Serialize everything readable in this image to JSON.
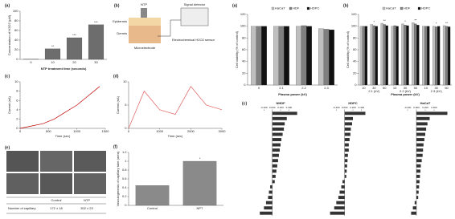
{
  "chart_data": [
    {
      "type": "bar",
      "panel": "(a)",
      "categories": [
        "0",
        "10",
        "20",
        "30"
      ],
      "values": [
        0.5,
        22,
        45,
        72
      ],
      "color": "#6d6d6d",
      "x_label": "NTP treatment time (seconds)",
      "y_label": "Concentration of H2O2 (μM)",
      "ylim": [
        0,
        100
      ],
      "yticks": [
        0,
        20,
        40,
        60,
        80,
        100
      ],
      "annotations": [
        {
          "x": "10",
          "text": "**"
        },
        {
          "x": "20",
          "text": "***"
        },
        {
          "x": "30",
          "text": "***"
        }
      ]
    },
    {
      "type": "line",
      "panel": "(c)",
      "x": [
        0,
        200,
        400,
        600,
        800,
        1000,
        1200,
        1400
      ],
      "series": [
        {
          "color": "#c00000",
          "values": [
            0,
            0.5,
            1,
            2,
            3.5,
            5,
            7,
            9
          ]
        }
      ],
      "x_label": "Time (sec)",
      "y_label": "Current (nA)",
      "xlim": [
        0,
        1500
      ],
      "xticks": [
        0,
        500,
        1000,
        1500
      ],
      "ylim": [
        0,
        10
      ],
      "yticks": [
        0,
        2,
        4,
        6,
        8,
        10
      ]
    },
    {
      "type": "line",
      "panel": "(d)",
      "x": [
        0,
        500,
        1000,
        1500,
        2000,
        2500,
        3000
      ],
      "series": [
        {
          "color": "#e06060",
          "values": [
            0,
            8,
            4,
            3,
            9,
            5,
            4
          ]
        }
      ],
      "x_label": "Time (sec)",
      "y_label": "Current (nA)",
      "xlim": [
        0,
        3000
      ],
      "xticks": [
        0,
        1000,
        2000,
        3000
      ],
      "ylim": [
        0,
        10
      ],
      "yticks": [
        0,
        5,
        10
      ]
    },
    {
      "type": "bar",
      "panel": "(f)",
      "categories": [
        "Control",
        "NPT"
      ],
      "values": [
        0.45,
        1.0
      ],
      "color": "#8a8a8a",
      "y_label": "Vasculogenesis of capillary tube (area)",
      "ylim": [
        0,
        1.2
      ],
      "yticks": [
        0,
        0.2,
        0.4,
        0.6,
        0.8,
        1,
        1.2
      ],
      "annotations": [
        {
          "x": "NPT",
          "text": "*"
        }
      ]
    },
    {
      "type": "bar",
      "panel": "(a)",
      "categories": [
        "0",
        "2.1",
        "2.2",
        "2.3"
      ],
      "x_label": "Plasma power (kV)",
      "y_label": "Cell viability (% of control)",
      "ylim": [
        0,
        120
      ],
      "yticks": [
        0,
        20,
        40,
        60,
        80,
        100,
        120
      ],
      "series": [
        {
          "name": "HaCaT",
          "color": "#bfbfbf",
          "values": [
            100,
            100,
            100,
            96
          ]
        },
        {
          "name": "HDF",
          "color": "#7f7f7f",
          "values": [
            100,
            100,
            101,
            95
          ]
        },
        {
          "name": "HDPC",
          "color": "#111111",
          "values": [
            100,
            100,
            100,
            94
          ]
        }
      ]
    },
    {
      "type": "bar",
      "panel": "(b)",
      "categories": [
        "10",
        "30",
        "50",
        "10",
        "30",
        "50",
        "10",
        "30",
        "50"
      ],
      "x_groups": [
        "2.1 (kV)",
        "2.2 (kV)",
        "2.3 (kV)"
      ],
      "x_label": "Plasma power (kV)",
      "y_label": "Cell viability (% of control)",
      "ylim": [
        0,
        120
      ],
      "yticks": [
        0,
        20,
        40,
        60,
        80,
        100,
        120
      ],
      "series": [
        {
          "name": "HaCaT",
          "color": "#bfbfbf",
          "values": [
            100,
            103,
            105,
            100,
            104,
            106,
            100,
            100,
            101
          ]
        },
        {
          "name": "HDF",
          "color": "#7f7f7f",
          "values": [
            100,
            101,
            103,
            101,
            102,
            104,
            100,
            99,
            100
          ]
        },
        {
          "name": "HDPC",
          "color": "#111111",
          "values": [
            100,
            100,
            101,
            100,
            101,
            102,
            100,
            100,
            99
          ]
        }
      ],
      "annotations": [
        {
          "x": "30",
          "text": "*"
        },
        {
          "x": "50",
          "text": "**"
        }
      ]
    },
    {
      "type": "hbar",
      "panel": "(c)",
      "title": "NHDF",
      "categories": [
        null,
        null,
        null,
        null,
        null,
        null,
        null,
        null,
        null,
        null,
        null,
        null,
        null,
        null,
        null,
        null,
        null,
        null,
        null,
        null
      ],
      "color": "#333333",
      "values": [
        0.6,
        0.35,
        0.3,
        0.28,
        0.25,
        0.22,
        0.2,
        0.18,
        0.16,
        0.14,
        0.12,
        0.1,
        0.08,
        0.06,
        -0.05,
        -0.08,
        -0.1,
        -0.15,
        -0.2,
        -0.3
      ],
      "xlim": [
        -0.4,
        0.8
      ],
      "xticks": [
        {
          "value": -0.2,
          "label": "-0.200"
        },
        {
          "value": 0,
          "label": "0.000"
        },
        {
          "value": 0.2,
          "label": "0.200"
        },
        {
          "value": 0.4,
          "label": "0.400"
        }
      ]
    },
    {
      "type": "hbar",
      "title": "HDPC",
      "categories": [
        null,
        null,
        null,
        null,
        null,
        null,
        null,
        null,
        null,
        null,
        null,
        null,
        null,
        null,
        null,
        null,
        null,
        null,
        null,
        null
      ],
      "color": "#333333",
      "values": [
        0.5,
        0.2,
        0.18,
        0.15,
        0.14,
        0.12,
        0.1,
        0.1,
        0.08,
        0.07,
        0.06,
        0.05,
        0.04,
        -0.05,
        -0.08,
        -0.12,
        -0.15,
        -0.2,
        -0.25,
        -0.35
      ],
      "xlim": [
        -0.4,
        0.8
      ],
      "xticks": [
        {
          "value": -0.2,
          "label": "-0.200"
        },
        {
          "value": 0,
          "label": "0.000"
        },
        {
          "value": 0.2,
          "label": "0.200"
        },
        {
          "value": 0.4,
          "label": "0.400"
        }
      ]
    },
    {
      "type": "hbar",
      "title": "HaCaT",
      "categories": [
        null,
        null,
        null,
        null,
        null,
        null,
        null,
        null,
        null,
        null,
        null,
        null,
        null,
        null,
        null,
        null,
        null,
        null,
        null,
        null
      ],
      "color": "#333333",
      "values": [
        0.7,
        0.3,
        0.25,
        0.22,
        0.2,
        0.18,
        0.16,
        0.15,
        0.14,
        0.12,
        0.1,
        0.09,
        0.08,
        0.07,
        0.06,
        0.05,
        0.04,
        -0.04,
        -0.08,
        -0.12
      ],
      "xlim": [
        -0.4,
        0.8
      ],
      "xticks": [
        {
          "value": -0.2,
          "label": "-0.200"
        },
        {
          "value": 0,
          "label": "0.000"
        },
        {
          "value": 0.2,
          "label": "0.200"
        },
        {
          "value": 0.4,
          "label": "0.400"
        }
      ]
    }
  ],
  "schematic": {
    "panel": "(b)",
    "source": "NTP",
    "detector": "Signal detector",
    "layer1": "Epidermis",
    "layer2": "Dermis",
    "sensor": "Electrochemical H2O2 sensor",
    "electrode": "Microelectrode"
  },
  "images": {
    "panel": "(e)",
    "table": {
      "header": [
        "Control",
        "NTP"
      ],
      "row_label": "Number of capillary",
      "row": [
        "172 ± 18",
        "302 ± 23"
      ]
    }
  }
}
